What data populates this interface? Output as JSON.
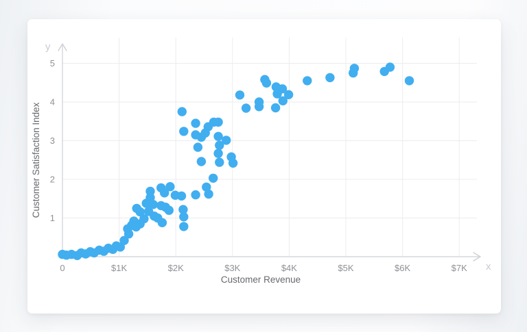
{
  "page": {
    "colors": {
      "page_background": "#f6f7f9",
      "card_background": "#ffffff",
      "point": "#41AEF0",
      "grid": "#ececef",
      "axis": "#ccd0d5",
      "tick_label": "#8e9196",
      "axis_title": "#67696e",
      "axis_letter": "#c7cbd1"
    }
  },
  "chart_data": {
    "type": "scatter",
    "title": "",
    "xlabel": "Customer Revenue",
    "ylabel": "Customer Satisfaction Index",
    "axis_letters": {
      "x": "x",
      "y": "y"
    },
    "xlim": [
      0,
      7400
    ],
    "ylim": [
      0,
      5.5
    ],
    "grid": true,
    "legend_position": "none",
    "point_color": "#41AEF0",
    "point_radius": 6.7,
    "x_ticks": [
      {
        "value": 0,
        "label": "0"
      },
      {
        "value": 1000,
        "label": "$1K"
      },
      {
        "value": 2000,
        "label": "$2K"
      },
      {
        "value": 3000,
        "label": "$3K"
      },
      {
        "value": 4000,
        "label": "$4K"
      },
      {
        "value": 5000,
        "label": "$5K"
      },
      {
        "value": 6000,
        "label": "$6K"
      },
      {
        "value": 7000,
        "label": "$7K"
      }
    ],
    "y_ticks": [
      {
        "value": 1,
        "label": "1"
      },
      {
        "value": 2,
        "label": "2"
      },
      {
        "value": 3,
        "label": "3"
      },
      {
        "value": 4,
        "label": "4"
      },
      {
        "value": 5,
        "label": "5"
      }
    ],
    "points": [
      [
        0,
        0.06
      ],
      [
        70,
        0.04
      ],
      [
        160,
        0.06
      ],
      [
        260,
        0.03
      ],
      [
        330,
        0.1
      ],
      [
        410,
        0.07
      ],
      [
        490,
        0.13
      ],
      [
        560,
        0.1
      ],
      [
        650,
        0.17
      ],
      [
        730,
        0.14
      ],
      [
        810,
        0.22
      ],
      [
        890,
        0.19
      ],
      [
        950,
        0.28
      ],
      [
        1020,
        0.25
      ],
      [
        1090,
        0.42
      ],
      [
        1150,
        0.72
      ],
      [
        1170,
        0.59
      ],
      [
        1220,
        0.81
      ],
      [
        1260,
        0.92
      ],
      [
        1300,
        0.77
      ],
      [
        1310,
        1.25
      ],
      [
        1370,
        0.85
      ],
      [
        1370,
        1.16
      ],
      [
        1440,
        0.98
      ],
      [
        1480,
        1.38
      ],
      [
        1520,
        1.17
      ],
      [
        1550,
        1.53
      ],
      [
        1550,
        1.69
      ],
      [
        1600,
        1.35
      ],
      [
        1620,
        1.05
      ],
      [
        1680,
        1.0
      ],
      [
        1740,
        1.78
      ],
      [
        1740,
        1.32
      ],
      [
        1760,
        0.88
      ],
      [
        1800,
        1.65
      ],
      [
        1820,
        1.28
      ],
      [
        1880,
        1.2
      ],
      [
        1900,
        1.81
      ],
      [
        1990,
        1.59
      ],
      [
        2100,
        1.57
      ],
      [
        2110,
        3.75
      ],
      [
        2130,
        1.22
      ],
      [
        2140,
        1.03
      ],
      [
        2140,
        0.78
      ],
      [
        2140,
        3.24
      ],
      [
        2350,
        1.6
      ],
      [
        2350,
        3.45
      ],
      [
        2350,
        3.15
      ],
      [
        2390,
        2.83
      ],
      [
        2450,
        3.09
      ],
      [
        2450,
        2.46
      ],
      [
        2520,
        3.2
      ],
      [
        2540,
        1.8
      ],
      [
        2570,
        3.36
      ],
      [
        2580,
        1.62
      ],
      [
        2660,
        2.03
      ],
      [
        2670,
        3.48
      ],
      [
        2750,
        3.48
      ],
      [
        2750,
        3.11
      ],
      [
        2750,
        2.67
      ],
      [
        2770,
        2.88
      ],
      [
        2770,
        2.44
      ],
      [
        2890,
        3.01
      ],
      [
        2980,
        2.58
      ],
      [
        3010,
        2.42
      ],
      [
        3130,
        4.18
      ],
      [
        3240,
        3.84
      ],
      [
        3470,
        4.0
      ],
      [
        3470,
        3.88
      ],
      [
        3570,
        4.58
      ],
      [
        3600,
        4.49
      ],
      [
        3760,
        3.85
      ],
      [
        3770,
        4.39
      ],
      [
        3790,
        4.21
      ],
      [
        3880,
        4.34
      ],
      [
        3890,
        4.03
      ],
      [
        3990,
        4.19
      ],
      [
        4320,
        4.55
      ],
      [
        4720,
        4.63
      ],
      [
        5130,
        4.75
      ],
      [
        5150,
        4.87
      ],
      [
        5680,
        4.79
      ],
      [
        5780,
        4.9
      ],
      [
        6120,
        4.55
      ]
    ]
  }
}
